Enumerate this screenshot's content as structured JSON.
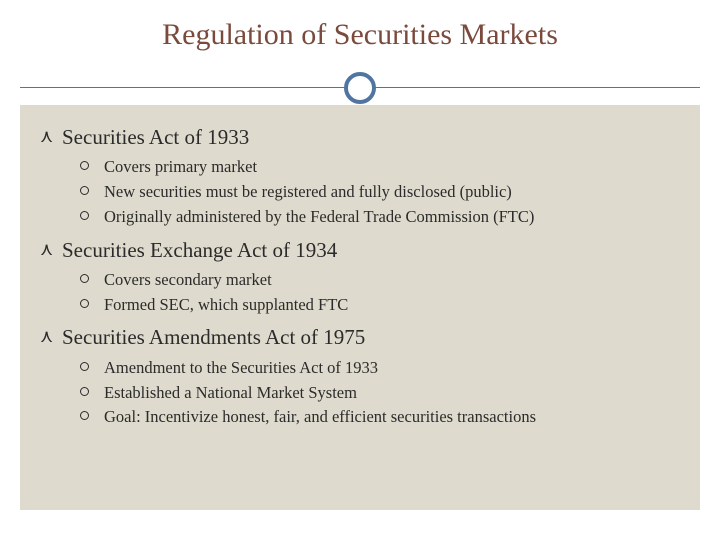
{
  "colors": {
    "title_color": "#7a4a3c",
    "accent_color": "#5175a1",
    "text_color": "#2b2b2b",
    "content_bg": "#dedacd",
    "page_bg": "#ffffff"
  },
  "typography": {
    "title_fontsize": 30,
    "heading_fontsize": 21,
    "body_fontsize": 16.5,
    "font_family": "Georgia"
  },
  "title": "Regulation of Securities Markets",
  "sections": [
    {
      "heading": "Securities Act of 1933",
      "items": [
        "Covers primary market",
        "New securities must be registered and fully disclosed (public)",
        "Originally administered by the Federal Trade Commission (FTC)"
      ]
    },
    {
      "heading": "Securities Exchange Act of 1934",
      "items": [
        "Covers secondary market",
        "Formed SEC, which supplanted FTC"
      ]
    },
    {
      "heading": "Securities Amendments Act of 1975",
      "items": [
        "Amendment to the Securities Act of 1933",
        "Established a National Market System",
        "Goal: Incentivize honest, fair, and efficient securities transactions"
      ]
    }
  ]
}
